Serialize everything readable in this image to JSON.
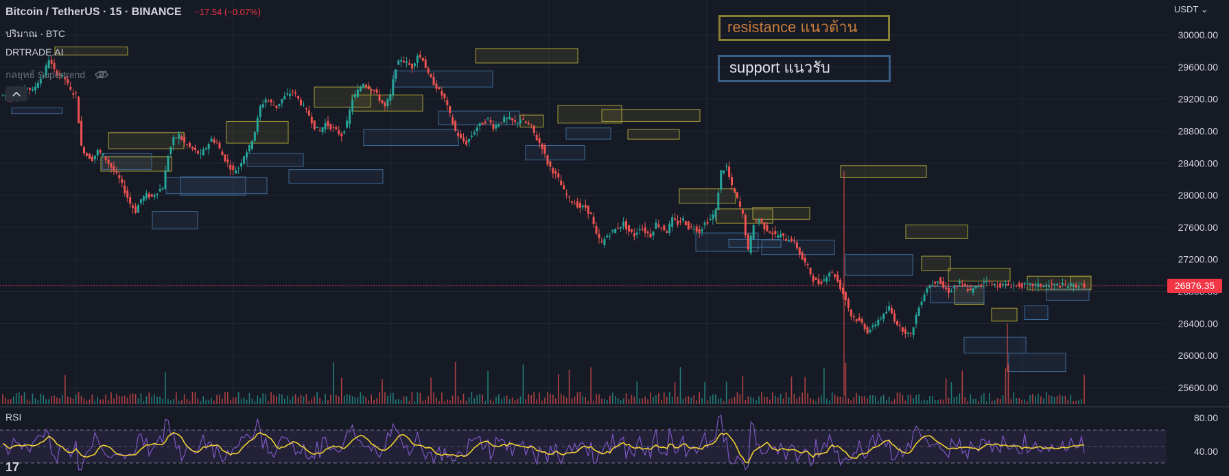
{
  "header": {
    "title": "Bitcoin / TetherUS · 15 · BINANCE",
    "change": "−17.54 (−0.07%)",
    "volume_label": "ปริมาณ · BTC",
    "indicator_1": "DRTRADE.AI",
    "indicator_2": "กลยุทธ์ Supertrend"
  },
  "annotations": {
    "resistance": "resistance แนวต้าน",
    "support": "support แนวรับ"
  },
  "price_scale": {
    "currency": "USDT",
    "current_price": "26876.35"
  },
  "rsi": {
    "label": "RSI"
  },
  "logo": "17",
  "colors": {
    "background": "#161a25",
    "up": "#26a69a",
    "down": "#ef5350",
    "resistance": "#a9a13a",
    "support": "#3e6a96",
    "rsi_line": "#7e57c2",
    "rsi_ma": "#f2d230",
    "price_badge": "#f23645"
  },
  "chart_data": [
    {
      "type": "line",
      "title": "Bitcoin / TetherUS · 15 · BINANCE",
      "ylim": [
        25400,
        30400
      ],
      "y_ticks": [
        30000,
        29600,
        29200,
        28800,
        28400,
        28000,
        27600,
        27200,
        26800,
        26400,
        26000,
        25600
      ],
      "y_tick_labels": [
        "30000.00",
        "29600.00",
        "29200.00",
        "28800.00",
        "28400.00",
        "28000.00",
        "27600.00",
        "27200.00",
        "26800.00",
        "26400.00",
        "26000.00",
        "25600.00"
      ],
      "grid": true,
      "x": [
        0,
        1,
        2,
        3,
        4,
        5,
        6,
        7,
        8,
        9,
        10,
        11,
        12,
        13,
        14,
        15,
        16,
        17,
        18,
        19,
        20,
        21,
        22,
        23,
        24,
        25,
        26,
        27,
        28,
        29,
        30,
        31,
        32,
        33,
        34,
        35,
        36,
        37,
        38,
        39,
        40,
        41,
        42,
        43,
        44,
        45,
        46,
        47,
        48,
        49,
        50,
        51,
        52,
        53,
        54,
        55,
        56,
        57,
        58,
        59,
        60,
        61,
        62,
        63,
        64,
        65,
        66,
        67,
        68,
        69,
        70,
        71,
        72,
        73,
        74,
        75,
        76,
        77,
        78,
        79,
        80,
        81,
        82,
        83,
        84,
        85,
        86,
        87,
        88,
        89,
        90,
        91,
        92,
        93,
        94,
        95,
        96,
        97,
        98,
        99,
        100,
        101,
        102,
        103,
        104,
        105,
        106,
        107,
        108,
        109,
        110,
        111,
        112,
        113,
        114,
        115,
        116,
        117,
        118,
        119,
        120,
        121,
        122,
        123,
        124,
        125,
        126,
        127,
        128,
        129,
        130,
        131,
        132,
        133,
        134,
        135,
        136,
        137,
        138,
        139,
        140,
        141,
        142,
        143,
        144,
        145,
        146,
        147,
        148,
        149,
        150,
        151,
        152,
        153,
        154,
        155,
        156,
        157,
        158,
        159,
        160,
        161,
        162,
        163,
        164,
        165,
        166,
        167,
        168,
        169,
        170,
        171,
        172,
        173,
        174,
        175,
        176,
        177,
        178,
        179,
        180,
        181,
        182,
        183,
        184,
        185,
        186,
        187,
        188,
        189,
        190,
        191,
        192,
        193,
        194,
        195,
        196,
        197,
        198,
        199
      ],
      "series": [
        {
          "values": [
            29250,
            29200,
            29300,
            29280,
            29350,
            29300,
            29420,
            29500,
            29700,
            29550,
            29500,
            29450,
            29300,
            29250,
            28600,
            28500,
            28450,
            28550,
            28500,
            28400,
            28300,
            28200,
            28050,
            27900,
            27800,
            27950,
            28000,
            27980,
            28050,
            28100,
            28500,
            28700,
            28750,
            28650,
            28600,
            28550,
            28500,
            28600,
            28700,
            28650,
            28500,
            28400,
            28300,
            28350,
            28500,
            28600,
            28800,
            29100,
            29200,
            29150,
            29100,
            29200,
            29250,
            29300,
            29200,
            29100,
            29000,
            28850,
            28800,
            28900,
            28850,
            28800,
            28750,
            28900,
            29200,
            29300,
            29400,
            29350,
            29300,
            29200,
            29100,
            29250,
            29600,
            29700,
            29650,
            29600,
            29750,
            29700,
            29500,
            29400,
            29300,
            29200,
            29000,
            28800,
            28700,
            28650,
            28750,
            28850,
            28900,
            28950,
            28850,
            28900,
            28950,
            28950,
            28900,
            28950,
            28900,
            28850,
            28700,
            28600,
            28400,
            28300,
            28200,
            28050,
            27950,
            27900,
            27850,
            27850,
            27750,
            27500,
            27400,
            27500,
            27550,
            27600,
            27650,
            27550,
            27500,
            27600,
            27550,
            27500,
            27650,
            27600,
            27550,
            27700,
            27650,
            27700,
            27600,
            27600,
            27550,
            27650,
            27700,
            27800,
            28300,
            28350,
            28100,
            27950,
            27750,
            27300,
            27650,
            27700,
            27600,
            27550,
            27500,
            27500,
            27450,
            27450,
            27350,
            27200,
            27100,
            26950,
            26900,
            26950,
            27050,
            27000,
            26850,
            26700,
            26500,
            26450,
            26400,
            26300,
            26350,
            26450,
            26500,
            26600,
            26450,
            26350,
            26300,
            26250,
            26500,
            26700,
            26850,
            26900,
            26950,
            26850,
            26800,
            26850,
            26900,
            26850,
            26800,
            26850,
            26900,
            26950,
            26880,
            26880,
            26876,
            26876,
            26876,
            26876,
            26876,
            26876,
            26876,
            26876,
            26876,
            26876,
            26876,
            26876,
            26876,
            26876,
            26876,
            26876
          ]
        }
      ]
    },
    {
      "type": "line",
      "title": "RSI",
      "ylim": [
        20,
        90
      ],
      "y_ticks": [
        80,
        40
      ],
      "y_tick_labels": [
        "80.00",
        "40.00"
      ],
      "reference_lines": [
        70,
        50,
        30
      ]
    }
  ]
}
